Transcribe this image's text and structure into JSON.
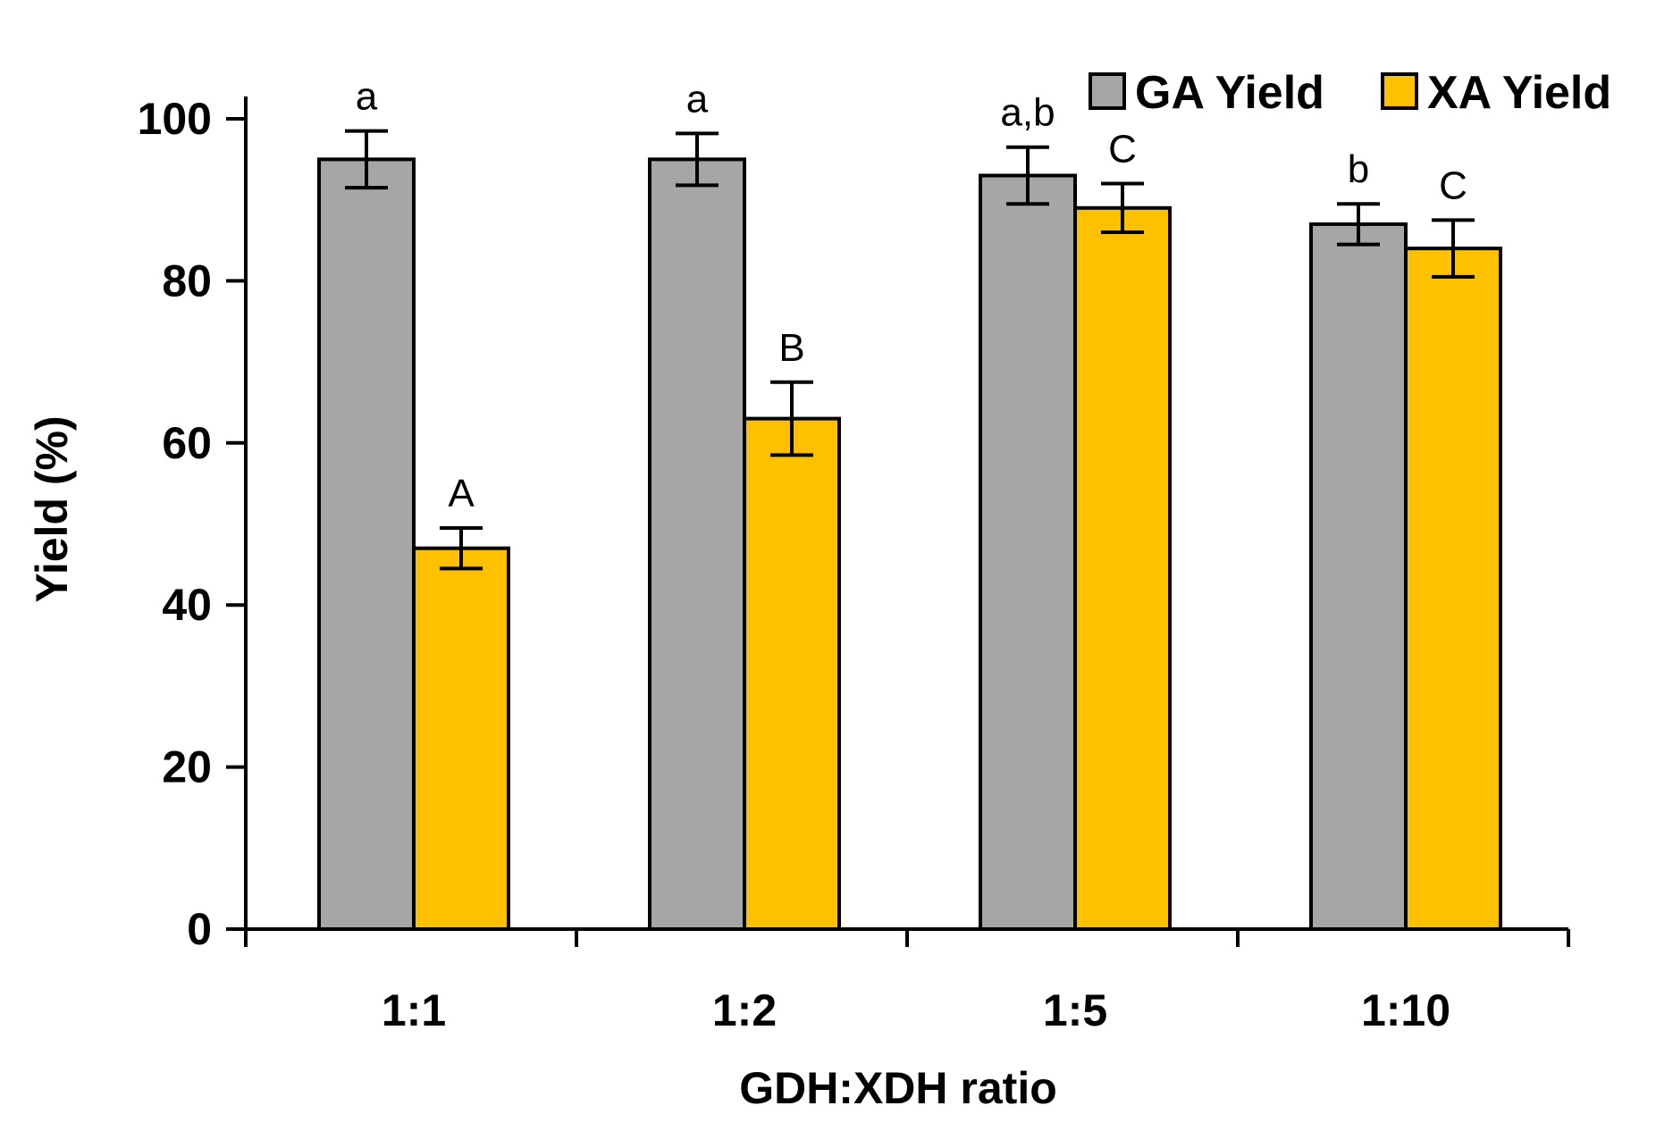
{
  "chart_data": {
    "type": "bar",
    "title": "",
    "xlabel": "GDH:XDH ratio",
    "ylabel": "Yield (%)",
    "ylim": [
      0,
      100
    ],
    "yticks": [
      0,
      20,
      40,
      60,
      80,
      100
    ],
    "categories": [
      "1:1",
      "1:2",
      "1:5",
      "1:10"
    ],
    "series": [
      {
        "name": "GA Yield",
        "color": "#a6a6a6",
        "values": [
          95,
          95,
          93,
          87
        ],
        "errors": [
          3.5,
          3.2,
          3.5,
          2.5
        ],
        "sig_labels": [
          "a",
          "a",
          "a,b",
          "b"
        ]
      },
      {
        "name": "XA Yield",
        "color": "#ffc000",
        "values": [
          47,
          63,
          89,
          84
        ],
        "errors": [
          2.5,
          4.5,
          3.0,
          3.5
        ],
        "sig_labels": [
          "A",
          "B",
          "C",
          "C"
        ]
      }
    ],
    "legend_position": "top-right",
    "grid": false
  }
}
